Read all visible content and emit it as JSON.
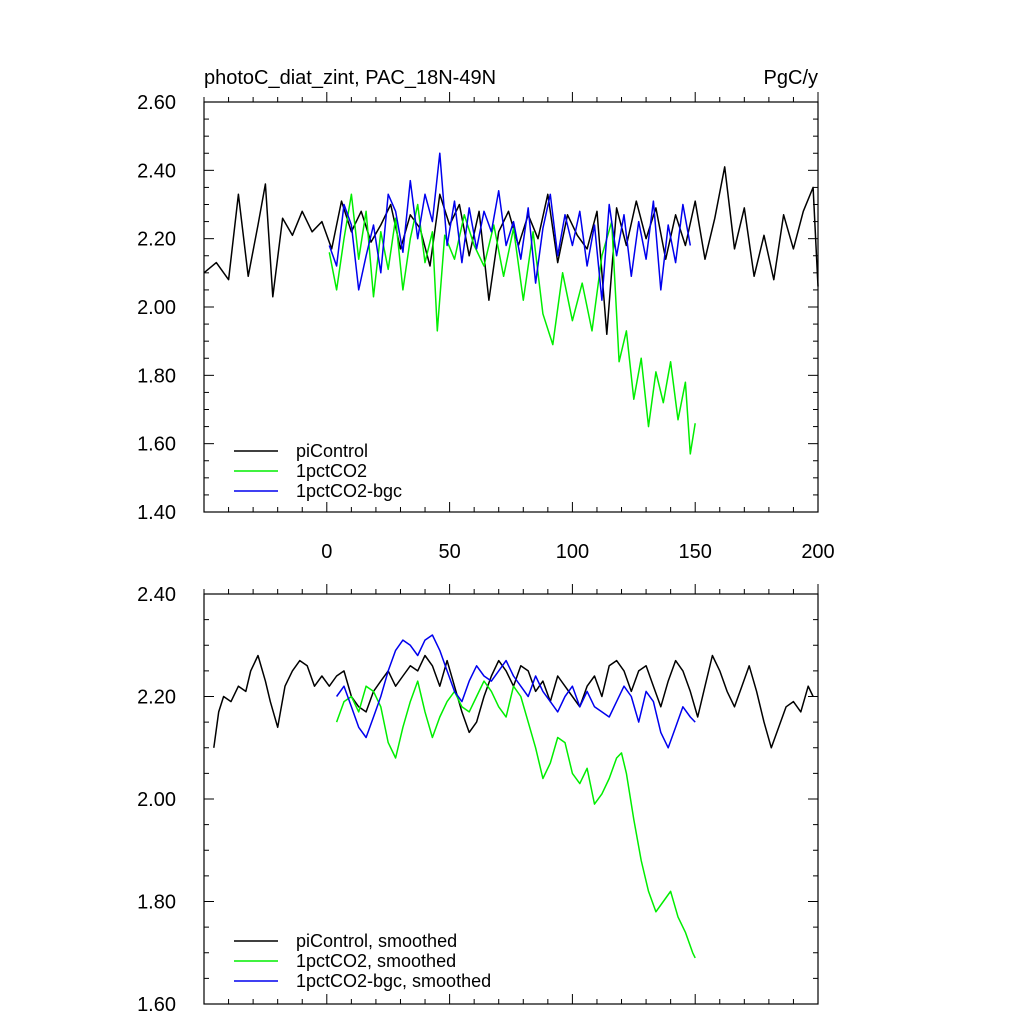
{
  "chart_data": [
    {
      "type": "line",
      "title_left": "photoC_diat_zint, PAC_18N-49N",
      "title_right": "PgC/y",
      "xlabel": "",
      "ylabel": "",
      "xlim": [
        -50,
        200
      ],
      "ylim": [
        1.4,
        2.6
      ],
      "xticks": [
        0,
        50,
        100,
        150,
        200
      ],
      "xtick_labels": [
        "0",
        "50",
        "100",
        "150",
        "200"
      ],
      "yticks": [
        1.4,
        1.6,
        1.8,
        2.0,
        2.2,
        2.4,
        2.6
      ],
      "ytick_labels": [
        "1.40",
        "1.60",
        "1.80",
        "2.00",
        "2.20",
        "2.40",
        "2.60"
      ],
      "legend_position": "bottom-left",
      "series": [
        {
          "name": "piControl",
          "color": "#000000",
          "x": [
            -50,
            -45,
            -40,
            -36,
            -32,
            -28,
            -25,
            -22,
            -18,
            -14,
            -10,
            -6,
            -2,
            2,
            6,
            10,
            14,
            18,
            22,
            26,
            30,
            34,
            38,
            42,
            46,
            50,
            54,
            58,
            62,
            66,
            70,
            74,
            78,
            82,
            86,
            90,
            94,
            98,
            102,
            106,
            110,
            114,
            118,
            122,
            126,
            130,
            134,
            138,
            142,
            146,
            150,
            154,
            158,
            162,
            166,
            170,
            174,
            178,
            182,
            186,
            190,
            194,
            198,
            200
          ],
          "values": [
            2.1,
            2.13,
            2.08,
            2.33,
            2.09,
            2.24,
            2.36,
            2.03,
            2.26,
            2.21,
            2.28,
            2.22,
            2.25,
            2.17,
            2.31,
            2.22,
            2.28,
            2.19,
            2.24,
            2.3,
            2.17,
            2.27,
            2.23,
            2.12,
            2.33,
            2.24,
            2.3,
            2.15,
            2.28,
            2.02,
            2.22,
            2.28,
            2.18,
            2.27,
            2.2,
            2.33,
            2.13,
            2.27,
            2.21,
            2.17,
            2.28,
            1.92,
            2.29,
            2.18,
            2.31,
            2.2,
            2.29,
            2.14,
            2.27,
            2.18,
            2.31,
            2.14,
            2.26,
            2.41,
            2.17,
            2.29,
            2.09,
            2.21,
            2.08,
            2.27,
            2.17,
            2.28,
            2.35,
            2.06
          ]
        },
        {
          "name": "1pctCO2",
          "color": "#00ee00",
          "x": [
            1,
            4,
            7,
            10,
            13,
            16,
            19,
            22,
            25,
            28,
            31,
            34,
            37,
            40,
            43,
            45,
            48,
            52,
            56,
            60,
            64,
            68,
            72,
            76,
            80,
            84,
            88,
            92,
            96,
            100,
            104,
            108,
            112,
            116,
            119,
            122,
            125,
            128,
            131,
            134,
            137,
            140,
            143,
            146,
            148,
            150
          ],
          "values": [
            2.16,
            2.05,
            2.2,
            2.33,
            2.14,
            2.28,
            2.03,
            2.22,
            2.11,
            2.26,
            2.05,
            2.2,
            2.3,
            2.13,
            2.22,
            1.93,
            2.21,
            2.14,
            2.27,
            2.18,
            2.12,
            2.24,
            2.09,
            2.23,
            2.02,
            2.22,
            1.98,
            1.89,
            2.1,
            1.96,
            2.07,
            1.93,
            2.15,
            2.25,
            1.84,
            1.93,
            1.73,
            1.85,
            1.65,
            1.81,
            1.72,
            1.84,
            1.67,
            1.78,
            1.57,
            1.66
          ]
        },
        {
          "name": "1pctCO2-bgc",
          "color": "#0000ee",
          "x": [
            1,
            4,
            7,
            10,
            13,
            16,
            19,
            22,
            25,
            28,
            31,
            34,
            37,
            40,
            43,
            46,
            49,
            52,
            55,
            58,
            61,
            64,
            67,
            70,
            73,
            76,
            79,
            82,
            85,
            88,
            91,
            94,
            97,
            100,
            103,
            106,
            109,
            112,
            115,
            118,
            121,
            124,
            127,
            130,
            133,
            136,
            139,
            142,
            145,
            148
          ],
          "values": [
            2.18,
            2.12,
            2.3,
            2.24,
            2.05,
            2.15,
            2.24,
            2.1,
            2.33,
            2.28,
            2.16,
            2.37,
            2.2,
            2.33,
            2.25,
            2.45,
            2.18,
            2.31,
            2.13,
            2.29,
            2.17,
            2.28,
            2.22,
            2.34,
            2.18,
            2.25,
            2.14,
            2.29,
            2.07,
            2.23,
            2.33,
            2.15,
            2.27,
            2.18,
            2.28,
            2.12,
            2.24,
            2.02,
            2.3,
            2.15,
            2.27,
            2.09,
            2.25,
            2.14,
            2.31,
            2.05,
            2.24,
            2.13,
            2.3,
            2.18
          ]
        }
      ]
    },
    {
      "type": "line",
      "title_left": "",
      "title_right": "",
      "xlabel": "",
      "ylabel": "",
      "xlim": [
        -50,
        200
      ],
      "ylim": [
        1.6,
        2.4
      ],
      "xticks": [
        0,
        50,
        100,
        150,
        200
      ],
      "xtick_labels": [],
      "yticks": [
        1.6,
        1.8,
        2.0,
        2.2,
        2.4
      ],
      "ytick_labels": [
        "1.60",
        "1.80",
        "2.00",
        "2.20",
        "2.40"
      ],
      "legend_position": "bottom-left",
      "series": [
        {
          "name": "piControl, smoothed",
          "color": "#000000",
          "x": [
            -46,
            -44,
            -42,
            -39,
            -36,
            -33,
            -31,
            -28,
            -25,
            -23,
            -20,
            -17,
            -14,
            -11,
            -8,
            -5,
            -2,
            1,
            4,
            7,
            10,
            13,
            16,
            19,
            22,
            25,
            28,
            31,
            34,
            37,
            40,
            43,
            46,
            49,
            52,
            55,
            58,
            61,
            64,
            67,
            70,
            73,
            76,
            79,
            82,
            85,
            88,
            91,
            94,
            97,
            100,
            103,
            106,
            109,
            112,
            115,
            118,
            121,
            124,
            127,
            130,
            133,
            136,
            139,
            142,
            145,
            148,
            151,
            154,
            157,
            160,
            163,
            166,
            169,
            172,
            175,
            178,
            181,
            184,
            187,
            190,
            193,
            196,
            198
          ],
          "values": [
            2.1,
            2.17,
            2.2,
            2.19,
            2.22,
            2.21,
            2.25,
            2.28,
            2.23,
            2.19,
            2.14,
            2.22,
            2.25,
            2.27,
            2.26,
            2.22,
            2.24,
            2.22,
            2.24,
            2.25,
            2.2,
            2.18,
            2.17,
            2.21,
            2.23,
            2.25,
            2.22,
            2.24,
            2.26,
            2.25,
            2.28,
            2.26,
            2.22,
            2.27,
            2.22,
            2.17,
            2.13,
            2.15,
            2.2,
            2.24,
            2.27,
            2.25,
            2.22,
            2.26,
            2.25,
            2.21,
            2.23,
            2.19,
            2.24,
            2.22,
            2.2,
            2.18,
            2.22,
            2.24,
            2.2,
            2.26,
            2.27,
            2.25,
            2.21,
            2.25,
            2.26,
            2.22,
            2.18,
            2.23,
            2.27,
            2.25,
            2.21,
            2.16,
            2.22,
            2.28,
            2.25,
            2.21,
            2.18,
            2.22,
            2.26,
            2.21,
            2.15,
            2.1,
            2.14,
            2.18,
            2.19,
            2.17,
            2.22,
            2.2
          ]
        },
        {
          "name": "1pctCO2, smoothed",
          "color": "#00ee00",
          "x": [
            4,
            7,
            10,
            13,
            16,
            19,
            22,
            25,
            28,
            31,
            34,
            37,
            40,
            43,
            46,
            49,
            52,
            55,
            58,
            61,
            64,
            67,
            70,
            73,
            76,
            79,
            82,
            85,
            88,
            91,
            94,
            97,
            100,
            103,
            106,
            109,
            112,
            115,
            118,
            120,
            122,
            125,
            128,
            131,
            134,
            137,
            140,
            143,
            146,
            149,
            150
          ],
          "values": [
            2.15,
            2.19,
            2.2,
            2.17,
            2.22,
            2.21,
            2.18,
            2.11,
            2.08,
            2.14,
            2.19,
            2.23,
            2.17,
            2.12,
            2.16,
            2.19,
            2.21,
            2.18,
            2.17,
            2.2,
            2.23,
            2.21,
            2.18,
            2.16,
            2.22,
            2.2,
            2.15,
            2.1,
            2.04,
            2.07,
            2.12,
            2.11,
            2.05,
            2.03,
            2.06,
            1.99,
            2.01,
            2.04,
            2.08,
            2.09,
            2.05,
            1.96,
            1.88,
            1.82,
            1.78,
            1.8,
            1.82,
            1.77,
            1.74,
            1.7,
            1.69
          ]
        },
        {
          "name": "1pctCO2-bgc, smoothed",
          "color": "#0000ee",
          "x": [
            4,
            7,
            10,
            13,
            16,
            19,
            22,
            25,
            28,
            31,
            34,
            37,
            40,
            43,
            46,
            49,
            52,
            55,
            58,
            61,
            64,
            67,
            70,
            73,
            76,
            79,
            82,
            85,
            88,
            91,
            94,
            97,
            100,
            103,
            106,
            109,
            112,
            115,
            118,
            121,
            124,
            127,
            130,
            133,
            136,
            139,
            142,
            145,
            148,
            150
          ],
          "values": [
            2.2,
            2.22,
            2.18,
            2.14,
            2.12,
            2.16,
            2.2,
            2.25,
            2.29,
            2.31,
            2.3,
            2.28,
            2.31,
            2.32,
            2.29,
            2.25,
            2.21,
            2.19,
            2.23,
            2.26,
            2.24,
            2.23,
            2.25,
            2.27,
            2.24,
            2.22,
            2.2,
            2.24,
            2.21,
            2.19,
            2.17,
            2.2,
            2.22,
            2.18,
            2.21,
            2.18,
            2.17,
            2.16,
            2.19,
            2.22,
            2.2,
            2.15,
            2.21,
            2.19,
            2.13,
            2.1,
            2.14,
            2.18,
            2.16,
            2.15
          ]
        }
      ]
    }
  ]
}
